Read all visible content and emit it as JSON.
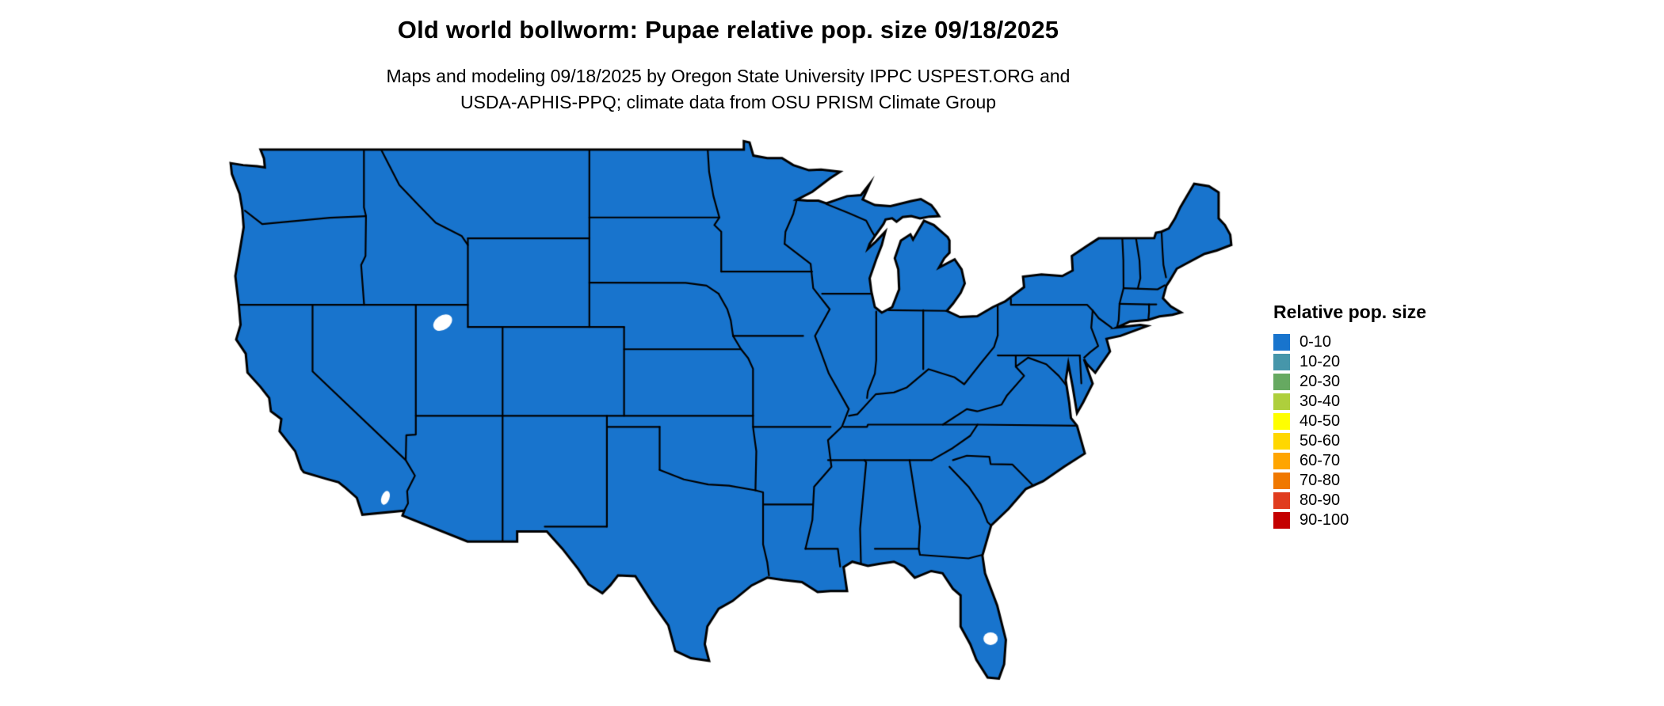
{
  "title": "Old world bollworm: Pupae relative pop. size 09/18/2025",
  "subtitle_lines": [
    "Maps and modeling 09/18/2025 by Oregon State University IPPC USPEST.ORG and",
    "USDA-APHIS-PPQ; climate data from OSU PRISM Climate Group"
  ],
  "map": {
    "region": "Continental United States",
    "kind": "raster choropleth of relative population size",
    "border_color": "#000000",
    "background_color": "#FFFFFF"
  },
  "legend": {
    "title": "Relative pop. size",
    "items": [
      {
        "label": "0-10",
        "color": "#1874CD"
      },
      {
        "label": "10-20",
        "color": "#4696AA"
      },
      {
        "label": "20-30",
        "color": "#66A961"
      },
      {
        "label": "30-40",
        "color": "#AECF3C"
      },
      {
        "label": "40-50",
        "color": "#FFFF00"
      },
      {
        "label": "50-60",
        "color": "#FFD700"
      },
      {
        "label": "60-70",
        "color": "#FFA500"
      },
      {
        "label": "70-80",
        "color": "#F07800"
      },
      {
        "label": "80-90",
        "color": "#E03C1E"
      },
      {
        "label": "90-100",
        "color": "#C40000"
      }
    ]
  }
}
